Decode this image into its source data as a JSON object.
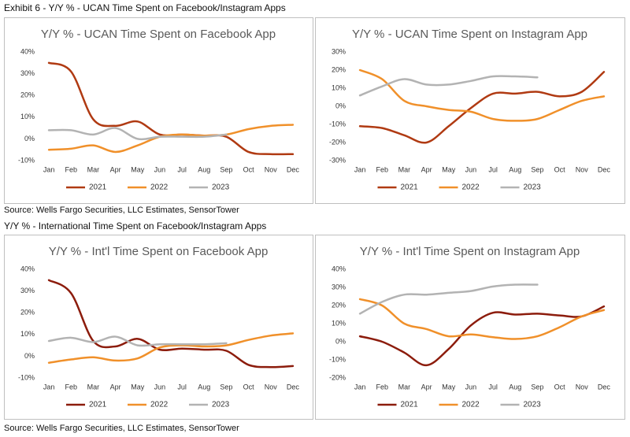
{
  "header": {
    "title": "Exhibit 6 - Y/Y % - UCAN Time Spent on Facebook/Instagram Apps",
    "source_top": "Source: Wells Fargo Securities, LLC Estimates, SensorTower",
    "subtitle": "Y/Y % - International Time Spent on Facebook/Instagram Apps",
    "source_bottom": "Source: Wells Fargo Securities, LLC Estimates, SensorTower"
  },
  "chart_data": [
    {
      "type": "line",
      "title": "Y/Y % - UCAN Time Spent on Facebook App",
      "categories": [
        "Jan",
        "Feb",
        "Mar",
        "Apr",
        "May",
        "Jun",
        "Jul",
        "Aug",
        "Sep",
        "Oct",
        "Nov",
        "Dec"
      ],
      "series": [
        {
          "name": "2021",
          "color": "#b03a12",
          "values": [
            35,
            31,
            9,
            6,
            8,
            2,
            2,
            1.5,
            1,
            -6,
            -7,
            -7
          ]
        },
        {
          "name": "2022",
          "color": "#f0902a",
          "values": [
            -5,
            -4.5,
            -3,
            -6,
            -3,
            1,
            2,
            1.5,
            2,
            4.5,
            6,
            6.5
          ]
        },
        {
          "name": "2023",
          "color": "#b3b3b3",
          "values": [
            4,
            4,
            2,
            5,
            0,
            1,
            1,
            1,
            2,
            null,
            null,
            null
          ]
        }
      ],
      "ylim": [
        -10,
        40
      ],
      "yticks": [
        {
          "value": -10,
          "label": "-10%"
        },
        {
          "value": 0,
          "label": "0%"
        },
        {
          "value": 10,
          "label": "10%"
        },
        {
          "value": 20,
          "label": "20%"
        },
        {
          "value": 30,
          "label": "30%"
        },
        {
          "value": 40,
          "label": "40%"
        }
      ],
      "grid": false,
      "legend": "bottom"
    },
    {
      "type": "line",
      "title": "Y/Y % - UCAN Time Spent on Instagram App",
      "categories": [
        "Jan",
        "Feb",
        "Mar",
        "Apr",
        "May",
        "Jun",
        "Jul",
        "Aug",
        "Sep",
        "Oct",
        "Nov",
        "Dec"
      ],
      "series": [
        {
          "name": "2021",
          "color": "#b03a12",
          "values": [
            -11,
            -12,
            -16,
            -20,
            -11,
            -1,
            7,
            7,
            8,
            5.5,
            8,
            19
          ]
        },
        {
          "name": "2022",
          "color": "#f0902a",
          "values": [
            20,
            15,
            3,
            0,
            -2,
            -3,
            -7,
            -8,
            -7,
            -2,
            3,
            5.5
          ]
        },
        {
          "name": "2023",
          "color": "#b3b3b3",
          "values": [
            6,
            11,
            15,
            12,
            12,
            14,
            16.5,
            16.5,
            16,
            null,
            null,
            null
          ]
        }
      ],
      "ylim": [
        -30,
        30
      ],
      "yticks": [
        {
          "value": -30,
          "label": "-30%"
        },
        {
          "value": -20,
          "label": "-20%"
        },
        {
          "value": -10,
          "label": "-10%"
        },
        {
          "value": 0,
          "label": "0%"
        },
        {
          "value": 10,
          "label": "10%"
        },
        {
          "value": 20,
          "label": "20%"
        },
        {
          "value": 30,
          "label": "30%"
        }
      ],
      "grid": false,
      "legend": "bottom"
    },
    {
      "type": "line",
      "title": "Y/Y % - Int'l Time Spent on Facebook App",
      "categories": [
        "Jan",
        "Feb",
        "Mar",
        "Apr",
        "May",
        "Jun",
        "Jul",
        "Aug",
        "Sep",
        "Oct",
        "Nov",
        "Dec"
      ],
      "series": [
        {
          "name": "2021",
          "color": "#8c1c0c",
          "values": [
            35,
            29,
            7,
            4.5,
            8,
            3,
            3.5,
            3,
            2.5,
            -4,
            -5,
            -4.5
          ]
        },
        {
          "name": "2022",
          "color": "#f0902a",
          "values": [
            -3,
            -1.5,
            -0.5,
            -2,
            -1,
            4,
            5,
            4.5,
            5,
            7.5,
            9.5,
            10.5
          ]
        },
        {
          "name": "2023",
          "color": "#b3b3b3",
          "values": [
            7,
            8.5,
            6.5,
            9,
            5,
            5.5,
            5.5,
            5.5,
            6,
            null,
            null,
            null
          ]
        }
      ],
      "ylim": [
        -10,
        40
      ],
      "yticks": [
        {
          "value": -10,
          "label": "-10%"
        },
        {
          "value": 0,
          "label": "0%"
        },
        {
          "value": 10,
          "label": "10%"
        },
        {
          "value": 20,
          "label": "20%"
        },
        {
          "value": 30,
          "label": "30%"
        },
        {
          "value": 40,
          "label": "40%"
        }
      ],
      "grid": false,
      "legend": "bottom"
    },
    {
      "type": "line",
      "title": "Y/Y % - Int'l Time Spent on Instagram App",
      "categories": [
        "Jan",
        "Feb",
        "Mar",
        "Apr",
        "May",
        "Jun",
        "Jul",
        "Aug",
        "Sep",
        "Oct",
        "Nov",
        "Dec"
      ],
      "series": [
        {
          "name": "2021",
          "color": "#8c1c0c",
          "values": [
            3,
            0,
            -6,
            -13,
            -4,
            9,
            16,
            15,
            15.5,
            14.5,
            14,
            19.5
          ]
        },
        {
          "name": "2022",
          "color": "#f0902a",
          "values": [
            23.5,
            20,
            10,
            7,
            3,
            4,
            2.5,
            1.5,
            3,
            8,
            14,
            17.5
          ]
        },
        {
          "name": "2023",
          "color": "#b3b3b3",
          "values": [
            15.5,
            22,
            26,
            26,
            27,
            28,
            30.5,
            31.5,
            31.5,
            null,
            null,
            null
          ]
        }
      ],
      "ylim": [
        -20,
        40
      ],
      "yticks": [
        {
          "value": -20,
          "label": "-20%"
        },
        {
          "value": -10,
          "label": "-10%"
        },
        {
          "value": 0,
          "label": "0%"
        },
        {
          "value": 10,
          "label": "10%"
        },
        {
          "value": 20,
          "label": "20%"
        },
        {
          "value": 30,
          "label": "30%"
        },
        {
          "value": 40,
          "label": "40%"
        }
      ],
      "grid": false,
      "legend": "bottom"
    }
  ]
}
